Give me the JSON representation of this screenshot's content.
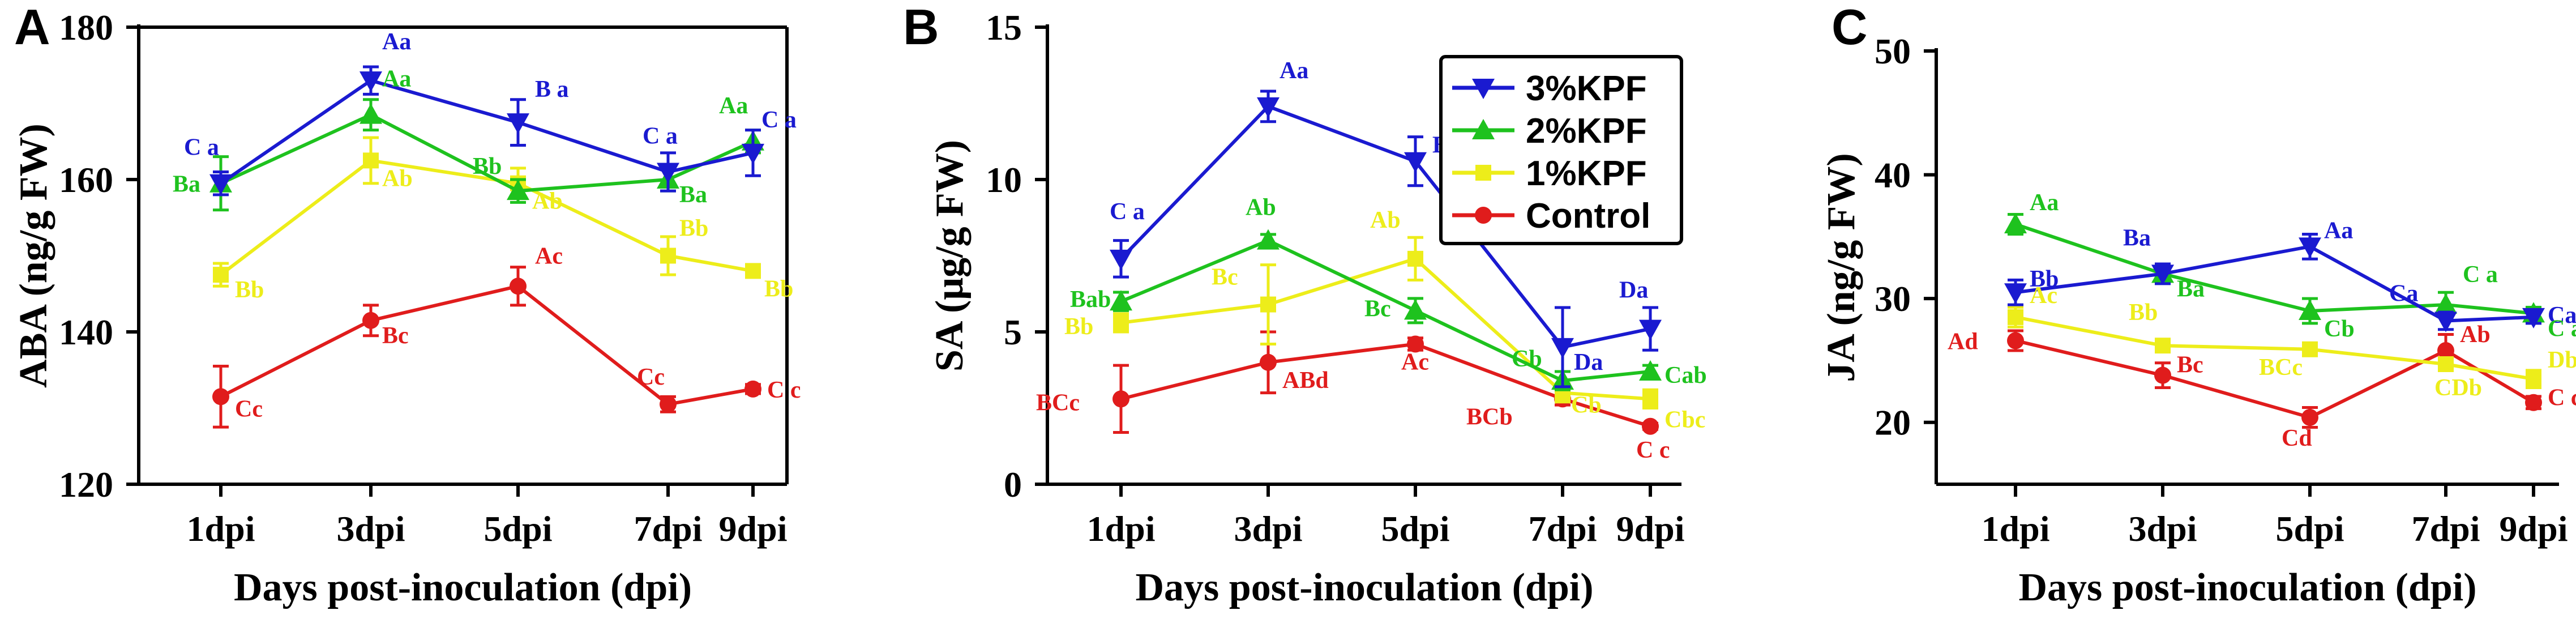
{
  "chart_data": [
    {
      "type": "line",
      "panel": "A",
      "ylabel": "ABA (ng/g FW)",
      "xlabel": "Days post-inoculation (dpi)",
      "categories": [
        "1dpi",
        "3dpi",
        "5dpi",
        "7dpi",
        "9dpi"
      ],
      "ylim": [
        120,
        180
      ],
      "yticks": [
        120,
        140,
        160,
        180
      ],
      "ytick_labels": [
        "120",
        "140",
        "160",
        "180"
      ],
      "series": [
        {
          "name": "3%KPF",
          "color": "#1a1ad0",
          "marker": "triangle-down",
          "values": [
            159.5,
            173,
            167.5,
            161,
            163.5
          ],
          "errors": [
            1.5,
            1.8,
            3,
            2.5,
            3
          ],
          "labels": [
            "C a",
            "Aa",
            "B a",
            "C a",
            "C a"
          ]
        },
        {
          "name": "2%KPF",
          "color": "#1ec21e",
          "marker": "triangle-up",
          "values": [
            159.5,
            168.5,
            158.5,
            160,
            165
          ],
          "errors": [
            3.5,
            2,
            1.5,
            1.5,
            1.5
          ],
          "labels": [
            "Ba",
            "Aa",
            "Bb",
            "Ba",
            "Aa"
          ]
        },
        {
          "name": "1%KPF",
          "color": "#eded1a",
          "marker": "square",
          "values": [
            147.5,
            162.5,
            159.5,
            150,
            148
          ],
          "errors": [
            1.5,
            3,
            2,
            2.5,
            0.8
          ],
          "labels": [
            "Bb",
            "Ab",
            "Ab",
            "Bb",
            "Bb"
          ]
        },
        {
          "name": "Control",
          "color": "#e01c1c",
          "marker": "circle",
          "values": [
            131.5,
            141.5,
            146,
            130.5,
            132.5
          ],
          "errors": [
            4,
            2,
            2.5,
            1,
            0.6
          ],
          "labels": [
            "Cc",
            "Bc",
            "Ac",
            "Cc",
            "C c"
          ]
        }
      ]
    },
    {
      "type": "line",
      "panel": "B",
      "ylabel": "SA (μg/g FW)",
      "xlabel": "Days post-inoculation (dpi)",
      "categories": [
        "1dpi",
        "3dpi",
        "5dpi",
        "7dpi",
        "9dpi"
      ],
      "ylim": [
        0,
        15
      ],
      "yticks": [
        0,
        5,
        10,
        15
      ],
      "ytick_labels": [
        "0",
        "5",
        "10",
        "15"
      ],
      "legend": {
        "position": "top-right",
        "entries": [
          "3%KPF",
          "2%KPF",
          "1%KPF",
          "Control"
        ]
      },
      "series": [
        {
          "name": "3%KPF",
          "color": "#1a1ad0",
          "marker": "triangle-down",
          "values": [
            7.4,
            12.4,
            10.6,
            4.5,
            5.1
          ],
          "errors": [
            0.6,
            0.5,
            0.8,
            1.3,
            0.7
          ],
          "labels": [
            "C a",
            "Aa",
            "B a",
            "Da",
            "Da"
          ]
        },
        {
          "name": "2%KPF",
          "color": "#1ec21e",
          "marker": "triangle-up",
          "values": [
            6.0,
            8.0,
            5.7,
            3.4,
            3.7
          ],
          "errors": [
            0.3,
            0.2,
            0.4,
            0.3,
            0.2
          ],
          "labels": [
            "Bab",
            "Ab",
            "Bc",
            "Cb",
            "Cab"
          ]
        },
        {
          "name": "1%KPF",
          "color": "#eded1a",
          "marker": "square",
          "values": [
            5.3,
            5.9,
            7.4,
            3.0,
            2.8
          ],
          "errors": [
            0.3,
            1.3,
            0.7,
            0.3,
            0.3
          ],
          "labels": [
            "Bb",
            "Bc",
            "Ab",
            "Cb",
            "Cbc"
          ]
        },
        {
          "name": "Control",
          "color": "#e01c1c",
          "marker": "circle",
          "values": [
            2.8,
            4.0,
            4.6,
            2.8,
            1.9
          ],
          "errors": [
            1.1,
            1.0,
            0.2,
            0.2,
            0.1
          ],
          "labels": [
            "BCc",
            "ABd",
            "Ac",
            "BCb",
            "C c"
          ]
        }
      ]
    },
    {
      "type": "line",
      "panel": "C",
      "ylabel": "JA (ng/g FW)",
      "xlabel": "Days post-inoculation (dpi)",
      "categories": [
        "1dpi",
        "3dpi",
        "5dpi",
        "7dpi",
        "9dpi"
      ],
      "ylim": [
        15,
        50
      ],
      "yticks": [
        20,
        30,
        40,
        50
      ],
      "ytick_labels": [
        "20",
        "30",
        "40",
        "50"
      ],
      "series": [
        {
          "name": "3%KPF",
          "color": "#1a1ad0",
          "marker": "triangle-down",
          "values": [
            30.5,
            32,
            34.2,
            28.2,
            28.5
          ],
          "errors": [
            1,
            0.8,
            1,
            0.7,
            0.5
          ],
          "labels": [
            "Bb",
            "Ba",
            "Aa",
            "Ca",
            "Ca"
          ]
        },
        {
          "name": "2%KPF",
          "color": "#1ec21e",
          "marker": "triangle-up",
          "values": [
            36,
            32,
            29,
            29.5,
            28.8
          ],
          "errors": [
            0.8,
            0.7,
            1,
            1,
            0.5
          ],
          "labels": [
            "Aa",
            "Ba",
            "Cb",
            "C a",
            "C a"
          ]
        },
        {
          "name": "1%KPF",
          "color": "#eded1a",
          "marker": "square",
          "values": [
            28.5,
            26.2,
            25.9,
            24.7,
            23.5
          ],
          "errors": [
            0.8,
            0.5,
            0.5,
            0.5,
            0.7
          ],
          "labels": [
            "Ac",
            "Bb",
            "BCc",
            "CDb",
            "Db"
          ]
        },
        {
          "name": "Control",
          "color": "#e01c1c",
          "marker": "circle",
          "values": [
            26.6,
            23.8,
            20.4,
            25.8,
            21.6
          ],
          "errors": [
            0.8,
            1,
            0.8,
            1.3,
            0.5
          ],
          "labels": [
            "Ad",
            "Bc",
            "Cd",
            "Ab",
            "C c"
          ]
        }
      ]
    }
  ]
}
